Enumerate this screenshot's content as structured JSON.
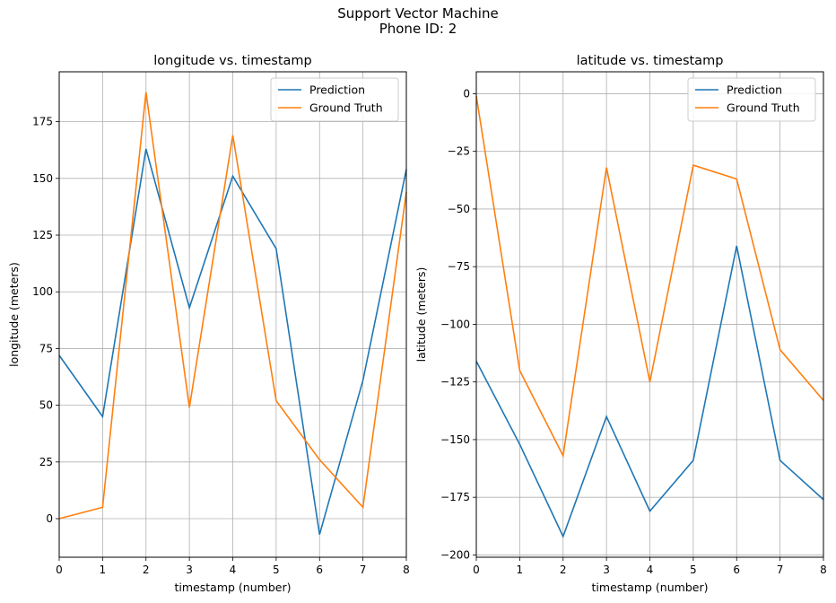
{
  "figure": {
    "suptitle_line1": "Support Vector Machine",
    "suptitle_line2": "Phone ID: 2"
  },
  "colors": {
    "prediction": "#1f77b4",
    "ground_truth": "#ff7f0e",
    "grid": "#b0b0b0",
    "axes": "#000000"
  },
  "chart_data": [
    {
      "type": "line",
      "title": "longitude vs. timestamp",
      "xlabel": "timestamp (number)",
      "ylabel": "longitude (meters)",
      "xlim": [
        0,
        8
      ],
      "ylim": [
        -17,
        197
      ],
      "xticks": [
        0,
        1,
        2,
        3,
        4,
        5,
        6,
        7,
        8
      ],
      "yticks": [
        0,
        25,
        50,
        75,
        100,
        125,
        150,
        175
      ],
      "grid": true,
      "legend_position": "upper right",
      "x": [
        0,
        1,
        2,
        3,
        4,
        5,
        6,
        7,
        8
      ],
      "series": [
        {
          "name": "Prediction",
          "color": "#1f77b4",
          "values": [
            72,
            45,
            163,
            93,
            151,
            119,
            -7,
            61,
            154
          ]
        },
        {
          "name": "Ground Truth",
          "color": "#ff7f0e",
          "values": [
            0,
            5,
            188,
            49,
            169,
            52,
            26,
            5,
            144
          ]
        }
      ]
    },
    {
      "type": "line",
      "title": "latitude vs. timestamp",
      "xlabel": "timestamp (number)",
      "ylabel": "latitude (meters)",
      "xlim": [
        0,
        8
      ],
      "ylim": [
        -201,
        9.5
      ],
      "xticks": [
        0,
        1,
        2,
        3,
        4,
        5,
        6,
        7,
        8
      ],
      "yticks": [
        0,
        -25,
        -50,
        -75,
        -100,
        -125,
        -150,
        -175,
        -200
      ],
      "grid": true,
      "legend_position": "upper right",
      "x": [
        0,
        1,
        2,
        3,
        4,
        5,
        6,
        7,
        8
      ],
      "series": [
        {
          "name": "Prediction",
          "color": "#1f77b4",
          "values": [
            -116,
            -152,
            -192,
            -140,
            -181,
            -159,
            -66,
            -159,
            -176
          ]
        },
        {
          "name": "Ground Truth",
          "color": "#ff7f0e",
          "values": [
            -1,
            -120,
            -157,
            -32,
            -125,
            -31,
            -37,
            -111,
            -133
          ]
        }
      ]
    }
  ]
}
